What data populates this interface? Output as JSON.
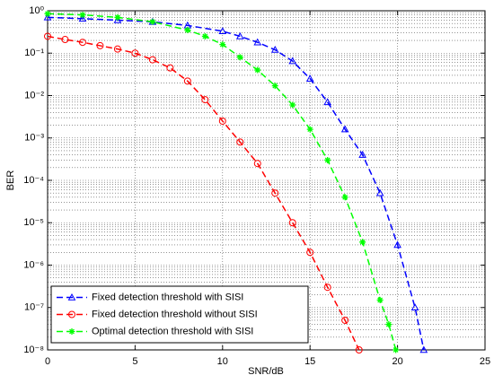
{
  "chart_data": {
    "type": "line",
    "xlabel": "SNR/dB",
    "ylabel": "BER",
    "xlim": [
      0,
      25
    ],
    "xticks": [
      0,
      5,
      10,
      15,
      20,
      25
    ],
    "ylim": [
      1e-08,
      1
    ],
    "yscale": "log",
    "yticks": [
      {
        "value": 1,
        "label": "10⁰"
      },
      {
        "value": 0.1,
        "label": "10⁻¹"
      },
      {
        "value": 0.01,
        "label": "10⁻²"
      },
      {
        "value": 0.001,
        "label": "10⁻³"
      },
      {
        "value": 0.0001,
        "label": "10⁻⁴"
      },
      {
        "value": 1e-05,
        "label": "10⁻⁵"
      },
      {
        "value": 1e-06,
        "label": "10⁻⁶"
      },
      {
        "value": 1e-07,
        "label": "10⁻⁷"
      },
      {
        "value": 1e-08,
        "label": "10⁻⁸"
      }
    ],
    "grid": true,
    "minor_grid": true,
    "legend": "lower left",
    "series": [
      {
        "name": "Fixed detection threshold with SISI",
        "color": "#0000ff",
        "marker": "triangle",
        "x": [
          0,
          2,
          4,
          6,
          8,
          10,
          11,
          12,
          13,
          14,
          15,
          16,
          17,
          18,
          19,
          20,
          21,
          21.5
        ],
        "values": [
          0.7,
          0.65,
          0.6,
          0.55,
          0.45,
          0.33,
          0.25,
          0.18,
          0.12,
          0.065,
          0.025,
          0.007,
          0.0016,
          0.0004,
          5e-05,
          3e-06,
          1e-07,
          1e-08
        ]
      },
      {
        "name": "Fixed detection threshold without SISI",
        "color": "#ff0000",
        "marker": "circle",
        "x": [
          0,
          1,
          2,
          3,
          4,
          5,
          6,
          7,
          8,
          9,
          10,
          11,
          12,
          13,
          14,
          15,
          16,
          17,
          17.8
        ],
        "values": [
          0.25,
          0.21,
          0.18,
          0.15,
          0.125,
          0.1,
          0.07,
          0.045,
          0.022,
          0.008,
          0.0025,
          0.0008,
          0.00025,
          5e-05,
          1e-05,
          2e-06,
          3e-07,
          5e-08,
          1e-08
        ]
      },
      {
        "name": "Optimal detection threshold with SISI",
        "color": "#00ff00",
        "marker": "star",
        "x": [
          0,
          2,
          4,
          6,
          8,
          9,
          10,
          11,
          12,
          13,
          14,
          15,
          16,
          17,
          18,
          19,
          19.5,
          19.9
        ],
        "values": [
          0.85,
          0.8,
          0.7,
          0.55,
          0.35,
          0.25,
          0.16,
          0.08,
          0.04,
          0.017,
          0.006,
          0.0016,
          0.0003,
          4e-05,
          3.5e-06,
          1.5e-07,
          4e-08,
          1e-08
        ]
      }
    ]
  }
}
